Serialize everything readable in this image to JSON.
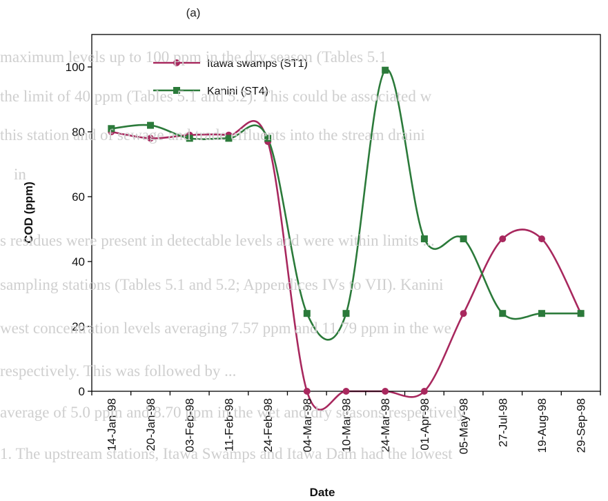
{
  "panel_label": "(a)",
  "colors": {
    "st1": "#a8285e",
    "st4": "#2b7a3a",
    "axis": "#000000",
    "background_text": "#cfcfcf"
  },
  "background_text": [
    "maximum levels up to 100 ppm in the dry season (Tables 5.1",
    "the limit of 40 ppm (Tables 5.1 and 5.2). This could be associated w",
    "this station and of sewage and trade effluents into the stream draini",
    "in",
    "s residues were present in detectable levels and were within limits ...",
    "sampling stations (Tables 5.1 and 5.2; Appendices IVs to VII). Kanini",
    "west concentration levels averaging 7.57 ppm and 11.79 ppm in the we",
    "respectively. This was followed by ...",
    "average of 5.0 ppm and 8.70 ppm in the wet and dry seasons respectively",
    "1. The upstream stations, Itawa Swamps and Itawa Dam had the lowest"
  ],
  "chart_data": {
    "type": "line",
    "title": "",
    "xlabel": "Date",
    "ylabel": "COD (ppm)",
    "ylim": [
      0,
      110
    ],
    "yticks": [
      0,
      20,
      40,
      60,
      80,
      100
    ],
    "grid": false,
    "legend_position": "top-center",
    "categories": [
      "14-Jan-98",
      "20-Jan-98",
      "03-Feb-98",
      "11-Feb-98",
      "24-Feb-98",
      "04-Mar-98",
      "10-Mar-98",
      "24-Mar-98",
      "01-Apr-98",
      "05-May-98",
      "27-Jul-98",
      "19-Aug-98",
      "29-Sep-98"
    ],
    "series": [
      {
        "name": "Itawa swamps (ST1)",
        "marker": "circle",
        "color": "#a8285e",
        "values": [
          80,
          78,
          79,
          79,
          77,
          0,
          0,
          0,
          0,
          24,
          47,
          47,
          24
        ]
      },
      {
        "name": "Kanini (ST4)",
        "marker": "square",
        "color": "#2b7a3a",
        "values": [
          81,
          82,
          78,
          78,
          78,
          24,
          24,
          99,
          47,
          47,
          24,
          24,
          24
        ]
      }
    ]
  }
}
